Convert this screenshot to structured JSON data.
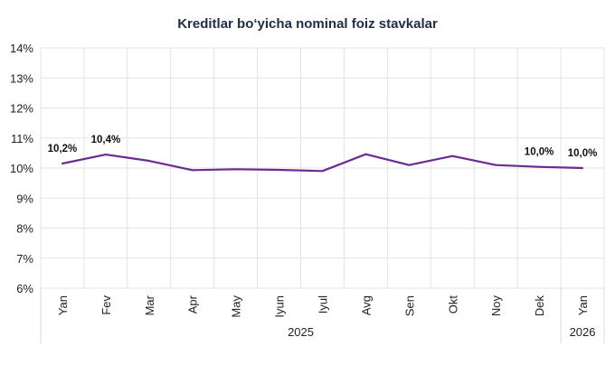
{
  "chart_data": {
    "type": "line",
    "title": "Kreditlar bo‘yicha nominal foiz stavkalar",
    "categories": [
      "Yan",
      "Fev",
      "Mar",
      "Apr",
      "May",
      "Iyun",
      "Iyul",
      "Avg",
      "Sen",
      "Okt",
      "Noy",
      "Dek",
      "Yan"
    ],
    "year_groups": [
      {
        "label": "2025",
        "count": 12
      },
      {
        "label": "2026",
        "count": 1
      }
    ],
    "series": [
      {
        "values": [
          10.15,
          10.45,
          10.24,
          9.93,
          9.96,
          9.94,
          9.9,
          10.46,
          10.1,
          10.4,
          10.1,
          10.04,
          10.0
        ],
        "color": "#6a2c91"
      }
    ],
    "data_labels": [
      {
        "index": 0,
        "text": "10,2%"
      },
      {
        "index": 1,
        "text": "10,4%"
      },
      {
        "index": 11,
        "text": "10,0%"
      },
      {
        "index": 12,
        "text": "10,0%"
      }
    ],
    "yticks": [
      "6%",
      "7%",
      "8%",
      "9%",
      "10%",
      "11%",
      "12%",
      "13%",
      "14%"
    ],
    "ylim": [
      6,
      14
    ],
    "grid": true,
    "xlabel": "",
    "ylabel": ""
  }
}
